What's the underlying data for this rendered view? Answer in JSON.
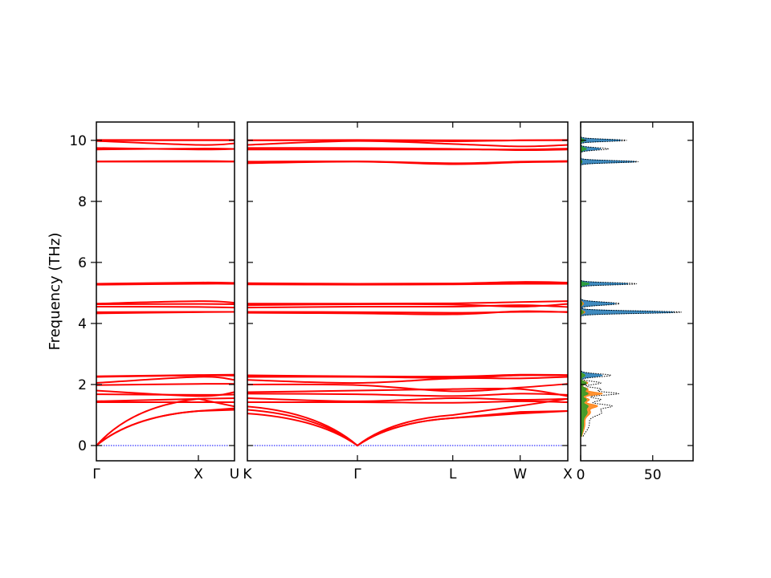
{
  "chart_data": {
    "type": "line",
    "ylabel": "Frequency (THz)",
    "ylim": [
      -0.5,
      10.6
    ],
    "yticks": [
      0,
      2,
      4,
      6,
      8,
      10
    ],
    "colors": {
      "bands": "#ff0000",
      "zero_line": "#0000ff"
    },
    "segments": [
      {
        "path": [
          "Γ",
          "X",
          "U"
        ],
        "positions": [
          0,
          1,
          0.354
        ],
        "bands": [
          [
            0.0,
            1.13,
            1.22
          ],
          [
            0.0,
            1.13,
            1.17
          ],
          [
            0.0,
            1.53,
            1.28
          ],
          [
            1.42,
            1.42,
            1.42
          ],
          [
            1.45,
            1.53,
            1.55
          ],
          [
            1.68,
            1.66,
            1.67
          ],
          [
            1.8,
            1.62,
            1.75
          ],
          [
            1.98,
            2.02,
            2.02
          ],
          [
            2.05,
            2.25,
            2.15
          ],
          [
            2.25,
            2.3,
            2.29
          ],
          [
            2.26,
            2.3,
            2.31
          ],
          [
            2.27,
            2.31,
            2.32
          ],
          [
            4.33,
            4.37,
            4.38
          ],
          [
            4.37,
            4.38,
            4.38
          ],
          [
            4.55,
            4.54,
            4.52
          ],
          [
            4.63,
            4.64,
            4.63
          ],
          [
            4.65,
            4.73,
            4.68
          ],
          [
            5.27,
            5.3,
            5.3
          ],
          [
            5.28,
            5.32,
            5.31
          ],
          [
            5.3,
            5.34,
            5.33
          ],
          [
            9.3,
            9.3,
            9.3
          ],
          [
            9.31,
            9.32,
            9.31
          ],
          [
            9.7,
            9.73,
            9.72
          ],
          [
            9.75,
            9.7,
            9.72
          ],
          [
            9.98,
            9.85,
            9.9
          ],
          [
            10.0,
            10.0,
            10.0
          ],
          [
            10.01,
            10.01,
            10.01
          ]
        ]
      },
      {
        "path": [
          "K",
          "Γ",
          "L",
          "W",
          "X"
        ],
        "positions": [
          0,
          1.061,
          1.98,
          2.63,
          3.089
        ],
        "bands": [
          [
            1.05,
            0.0,
            0.9,
            1.05,
            1.13
          ],
          [
            1.17,
            0.0,
            0.9,
            1.1,
            1.13
          ],
          [
            1.28,
            0.0,
            1.0,
            1.3,
            1.53
          ],
          [
            1.42,
            1.42,
            1.4,
            1.45,
            1.42
          ],
          [
            1.55,
            1.45,
            1.55,
            1.5,
            1.53
          ],
          [
            1.7,
            1.68,
            1.62,
            1.7,
            1.66
          ],
          [
            1.75,
            1.8,
            1.85,
            1.85,
            1.62
          ],
          [
            2.0,
            1.98,
            1.78,
            1.9,
            2.02
          ],
          [
            2.15,
            2.05,
            2.2,
            2.2,
            2.25
          ],
          [
            2.25,
            2.25,
            2.22,
            2.3,
            2.3
          ],
          [
            2.28,
            2.26,
            2.25,
            2.31,
            2.3
          ],
          [
            2.3,
            2.27,
            2.26,
            2.32,
            2.31
          ],
          [
            4.35,
            4.33,
            4.3,
            4.4,
            4.37
          ],
          [
            4.38,
            4.37,
            4.35,
            4.38,
            4.38
          ],
          [
            4.52,
            4.55,
            4.55,
            4.6,
            4.54
          ],
          [
            4.6,
            4.63,
            4.62,
            4.55,
            4.64
          ],
          [
            4.65,
            4.65,
            4.66,
            4.7,
            4.73
          ],
          [
            5.28,
            5.27,
            5.28,
            5.3,
            5.3
          ],
          [
            5.3,
            5.28,
            5.3,
            5.32,
            5.32
          ],
          [
            5.32,
            5.3,
            5.31,
            5.36,
            5.34
          ],
          [
            9.25,
            9.3,
            9.22,
            9.28,
            9.3
          ],
          [
            9.3,
            9.31,
            9.25,
            9.3,
            9.32
          ],
          [
            9.7,
            9.7,
            9.7,
            9.7,
            9.73
          ],
          [
            9.75,
            9.75,
            9.72,
            9.68,
            9.7
          ],
          [
            9.85,
            9.98,
            9.88,
            9.8,
            9.85
          ],
          [
            10.0,
            10.0,
            9.97,
            10.0,
            10.0
          ],
          [
            10.0,
            10.01,
            10.0,
            10.0,
            10.01
          ]
        ]
      }
    ],
    "dos": {
      "xlim": [
        0,
        78
      ],
      "xticks": [
        0,
        50
      ],
      "colors": [
        "#1f77b4",
        "#ff7f0e",
        "#2ca02c"
      ],
      "total_color": "#000000",
      "peaks": [
        {
          "freq": 0.7,
          "width": 0.25,
          "amps": [
            1,
            3,
            2
          ]
        },
        {
          "freq": 1.1,
          "width": 0.12,
          "amps": [
            3,
            6,
            4
          ]
        },
        {
          "freq": 1.3,
          "width": 0.06,
          "amps": [
            4,
            10,
            4
          ]
        },
        {
          "freq": 1.5,
          "width": 0.06,
          "amps": [
            4,
            6,
            4
          ]
        },
        {
          "freq": 1.7,
          "width": 0.05,
          "amps": [
            6,
            15,
            5
          ]
        },
        {
          "freq": 1.85,
          "width": 0.05,
          "amps": [
            5,
            5,
            4
          ]
        },
        {
          "freq": 2.05,
          "width": 0.05,
          "amps": [
            5,
            5,
            4
          ]
        },
        {
          "freq": 2.3,
          "width": 0.05,
          "amps": [
            15,
            3,
            3
          ]
        },
        {
          "freq": 4.37,
          "width": 0.04,
          "amps": [
            65,
            3,
            2
          ]
        },
        {
          "freq": 4.65,
          "width": 0.05,
          "amps": [
            24,
            2,
            1
          ]
        },
        {
          "freq": 5.3,
          "width": 0.035,
          "amps": [
            33,
            0,
            6
          ]
        },
        {
          "freq": 9.3,
          "width": 0.035,
          "amps": [
            38,
            1,
            1
          ]
        },
        {
          "freq": 9.72,
          "width": 0.04,
          "amps": [
            14,
            1,
            4
          ]
        },
        {
          "freq": 10.0,
          "width": 0.035,
          "amps": [
            28,
            1,
            3
          ]
        }
      ]
    }
  }
}
